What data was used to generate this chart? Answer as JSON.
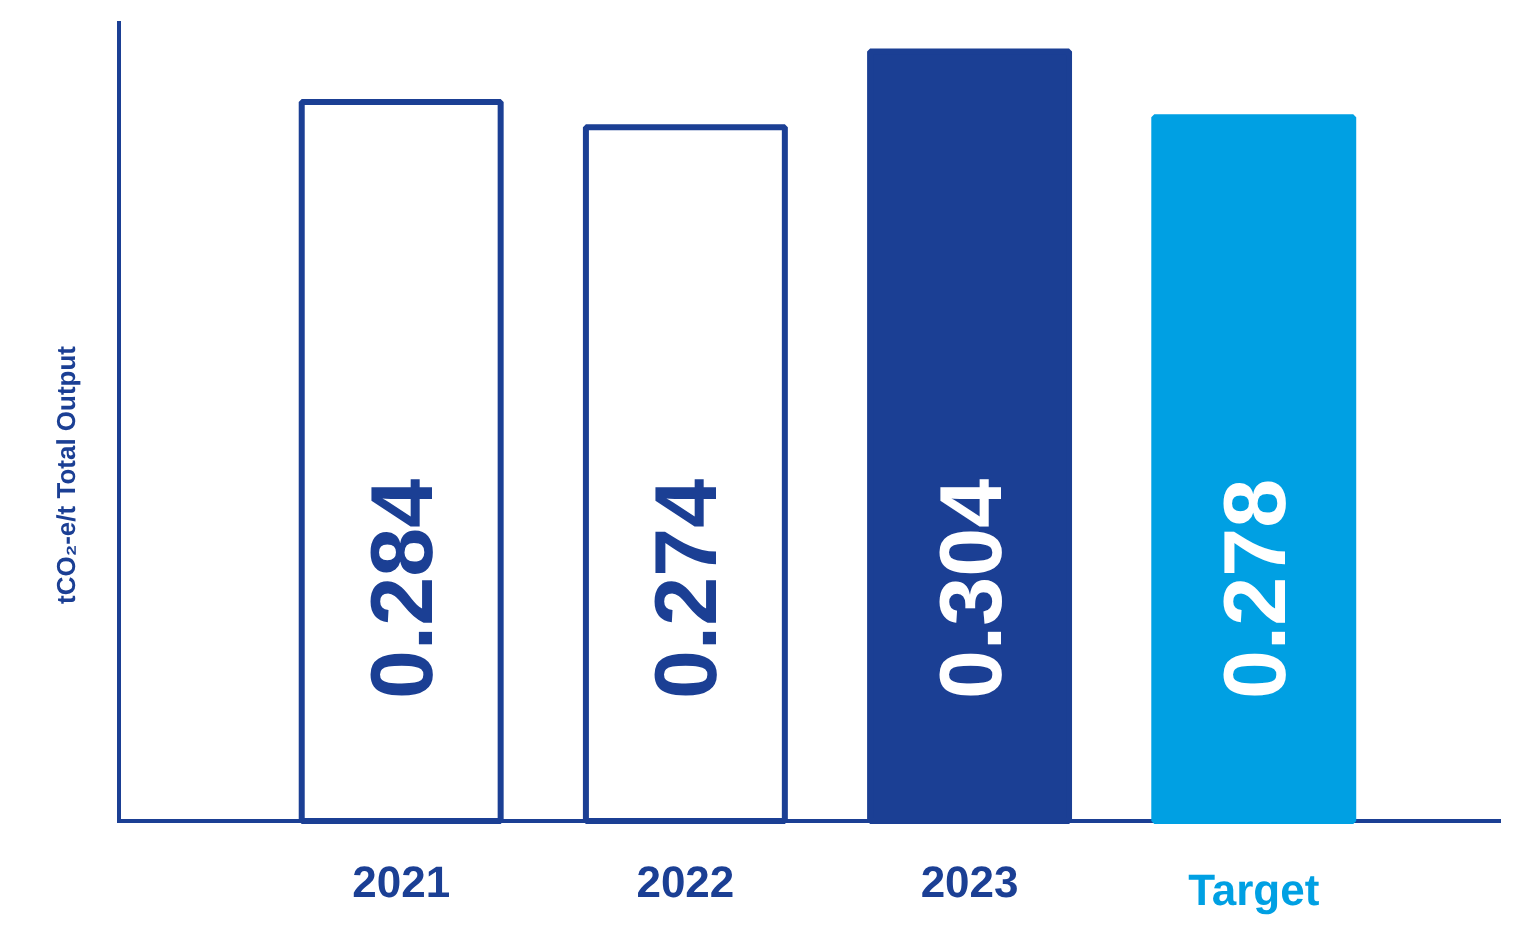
{
  "chart_data": {
    "type": "bar",
    "ylabel": "tCO₂-e/t Total Output",
    "categories": [
      "2021",
      "2022",
      "2023",
      "Target"
    ],
    "values": [
      0.284,
      0.274,
      0.304,
      0.278
    ],
    "colors": [
      "#ffffff",
      "#ffffff",
      "#1b3f94",
      "#00a0e3"
    ],
    "ylim": [
      0,
      0.316
    ],
    "data_labels": true,
    "grid": false
  }
}
